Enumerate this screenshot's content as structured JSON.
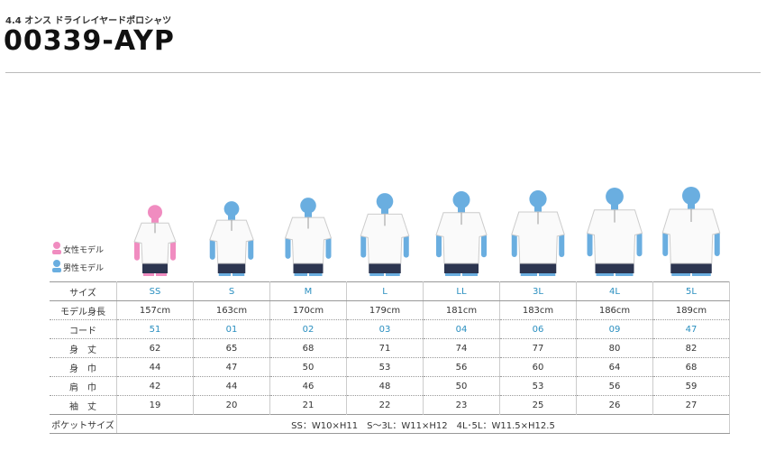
{
  "header": {
    "subtitle": "4.4 オンス ドライレイヤードポロシャツ",
    "title": "00339-AYP"
  },
  "legend": {
    "female": "女性モデル",
    "male": "男性モデル"
  },
  "table": {
    "size_label": "サイズ",
    "sizes": [
      "SS",
      "S",
      "M",
      "L",
      "LL",
      "3L",
      "4L",
      "5L"
    ],
    "rows": [
      {
        "label": "モデル身長",
        "values": [
          "157cm",
          "163cm",
          "170cm",
          "179cm",
          "181cm",
          "183cm",
          "186cm",
          "189cm"
        ]
      },
      {
        "label": "コード",
        "values": [
          "51",
          "01",
          "02",
          "03",
          "04",
          "06",
          "09",
          "47"
        ]
      },
      {
        "label": "身　丈",
        "values": [
          62,
          65,
          68,
          71,
          74,
          77,
          80,
          82
        ]
      },
      {
        "label": "身　巾",
        "values": [
          44,
          47,
          50,
          53,
          56,
          60,
          64,
          68
        ]
      },
      {
        "label": "肩　巾",
        "values": [
          42,
          44,
          46,
          48,
          50,
          53,
          56,
          59
        ]
      },
      {
        "label": "袖　丈",
        "values": [
          19,
          20,
          21,
          22,
          23,
          25,
          26,
          27
        ]
      }
    ],
    "pocket": {
      "label": "ポケットサイズ",
      "value": "SS：W10×H11　S～3L：W11×H12　4L･5L：W11.5×H12.5"
    }
  }
}
